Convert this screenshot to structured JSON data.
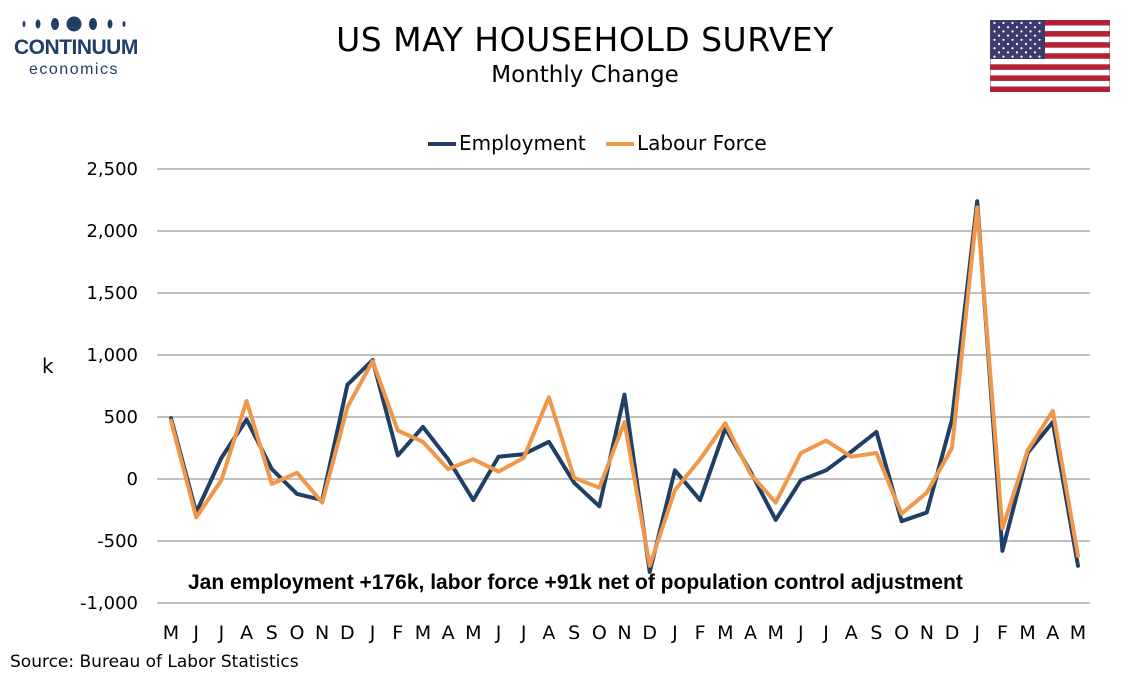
{
  "header": {
    "title": "US MAY HOUSEHOLD SURVEY",
    "subtitle": "Monthly Change",
    "logo_name": "CONTINUUM",
    "logo_sub": "economics"
  },
  "source": "Source: Bureau of Labor Statistics",
  "colors": {
    "employment": "#1f3f66",
    "labour_force": "#f0974a",
    "grid": "#c0c0c0",
    "logo": "#1f3f66"
  },
  "chart_data": {
    "type": "line",
    "title": "US MAY HOUSEHOLD SURVEY",
    "subtitle": "Monthly Change",
    "ylabel": "k",
    "xlabel": "",
    "ylim": [
      -1000,
      2500
    ],
    "yticks": [
      -1000,
      -500,
      0,
      500,
      1000,
      1500,
      2000,
      2500
    ],
    "ytick_labels": [
      "-1,000",
      "-500",
      "0",
      "500",
      "1,000",
      "1,500",
      "2,000",
      "2,500"
    ],
    "grid": true,
    "legend_position": "top-center",
    "categories": [
      "M",
      "J",
      "J",
      "A",
      "S",
      "O",
      "N",
      "D",
      "J",
      "F",
      "M",
      "A",
      "M",
      "J",
      "J",
      "A",
      "S",
      "O",
      "N",
      "D",
      "J",
      "F",
      "M",
      "A",
      "M",
      "J",
      "J",
      "A",
      "S",
      "O",
      "N",
      "D",
      "J",
      "F",
      "M",
      "A",
      "M"
    ],
    "series": [
      {
        "name": "Employment",
        "color": "#1f3f66",
        "values": [
          490,
          -270,
          170,
          480,
          80,
          -120,
          -170,
          760,
          960,
          190,
          420,
          160,
          -170,
          180,
          200,
          300,
          -30,
          -220,
          680,
          -750,
          70,
          -170,
          410,
          60,
          -330,
          -10,
          70,
          220,
          380,
          -340,
          -270,
          480,
          2240,
          -580,
          210,
          460,
          -700
        ]
      },
      {
        "name": "Labour Force",
        "color": "#f0974a",
        "values": [
          470,
          -310,
          -10,
          630,
          -40,
          50,
          -190,
          580,
          950,
          390,
          300,
          80,
          160,
          60,
          170,
          660,
          10,
          -70,
          460,
          -700,
          -90,
          160,
          450,
          40,
          -190,
          210,
          310,
          180,
          210,
          -280,
          -110,
          250,
          2190,
          -400,
          230,
          550,
          -620
        ]
      }
    ],
    "annotations": [
      "Jan employment +176k, labor force +91k net of population control adjustment"
    ]
  }
}
